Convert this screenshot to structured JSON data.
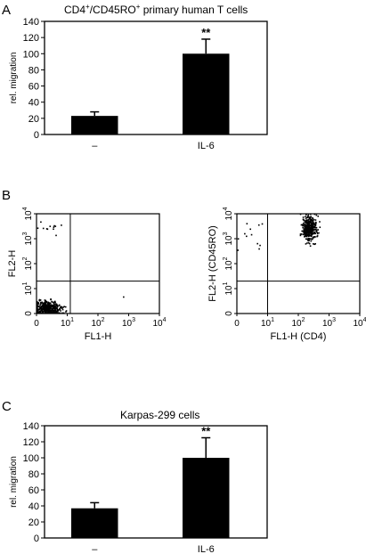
{
  "panels": {
    "A": {
      "letter": "A"
    },
    "B": {
      "letter": "B"
    },
    "C": {
      "letter": "C"
    }
  },
  "chart_data": [
    {
      "id": "A",
      "type": "bar",
      "title_parts": {
        "pre": "CD4",
        "sup1": "+",
        "mid": "/CD45RO",
        "sup2": "+",
        "post": " primary human T cells"
      },
      "ylabel": "rel. migration",
      "ylim": [
        0,
        140
      ],
      "yticks": [
        "0",
        "20",
        "40",
        "60",
        "80",
        "100",
        "120",
        "140"
      ],
      "categories": [
        "–",
        "IL-6"
      ],
      "values": [
        23,
        100
      ],
      "errors": [
        5,
        18
      ],
      "annotations": [
        "",
        "**"
      ],
      "bar_color": "#000000"
    },
    {
      "id": "B1",
      "type": "scatter",
      "xlabel": "FL1-H",
      "ylabel": "FL2-H",
      "scale": "log",
      "xticks": [
        {
          "base": "0",
          "exp": ""
        },
        {
          "base": "10",
          "exp": "1"
        },
        {
          "base": "10",
          "exp": "2"
        },
        {
          "base": "10",
          "exp": "3"
        },
        {
          "base": "10",
          "exp": "4"
        }
      ],
      "yticks": [
        {
          "base": "0",
          "exp": ""
        },
        {
          "base": "10",
          "exp": "1"
        },
        {
          "base": "10",
          "exp": "2"
        },
        {
          "base": "10",
          "exp": "3"
        },
        {
          "base": "10",
          "exp": "4"
        }
      ],
      "gate_decades": [
        1.1,
        1.3
      ],
      "populations": [
        {
          "cx": 0.35,
          "cy": 0.2,
          "sx": 0.22,
          "sy": 0.15,
          "n": 420
        },
        {
          "cx": 0.5,
          "cy": 3.5,
          "sx": 0.3,
          "sy": 0.12,
          "n": 12
        },
        {
          "cx": 2.8,
          "cy": 0.6,
          "sx": 0.05,
          "sy": 0.05,
          "n": 1
        }
      ]
    },
    {
      "id": "B2",
      "type": "scatter",
      "xlabel": "FL1-H (CD4)",
      "ylabel": "FL2-H (CD45RO)",
      "scale": "log",
      "xticks": [
        {
          "base": "0",
          "exp": ""
        },
        {
          "base": "10",
          "exp": "1"
        },
        {
          "base": "10",
          "exp": "2"
        },
        {
          "base": "10",
          "exp": "3"
        },
        {
          "base": "10",
          "exp": "4"
        }
      ],
      "yticks": [
        {
          "base": "0",
          "exp": ""
        },
        {
          "base": "10",
          "exp": "1"
        },
        {
          "base": "10",
          "exp": "2"
        },
        {
          "base": "10",
          "exp": "3"
        },
        {
          "base": "10",
          "exp": "4"
        }
      ],
      "gate_decades": [
        1.0,
        1.3
      ],
      "populations": [
        {
          "cx": 2.35,
          "cy": 3.4,
          "sx": 0.12,
          "sy": 0.25,
          "n": 380
        },
        {
          "cx": 0.4,
          "cy": 3.2,
          "sx": 0.3,
          "sy": 0.4,
          "n": 12
        }
      ]
    },
    {
      "id": "C",
      "type": "bar",
      "title": "Karpas-299 cells",
      "ylabel": "rel. migration",
      "ylim": [
        0,
        140
      ],
      "yticks": [
        "0",
        "20",
        "40",
        "60",
        "80",
        "100",
        "120",
        "140"
      ],
      "categories": [
        "–",
        "IL-6"
      ],
      "values": [
        37,
        100
      ],
      "errors": [
        7,
        25
      ],
      "annotations": [
        "",
        "**"
      ],
      "bar_color": "#000000"
    }
  ]
}
